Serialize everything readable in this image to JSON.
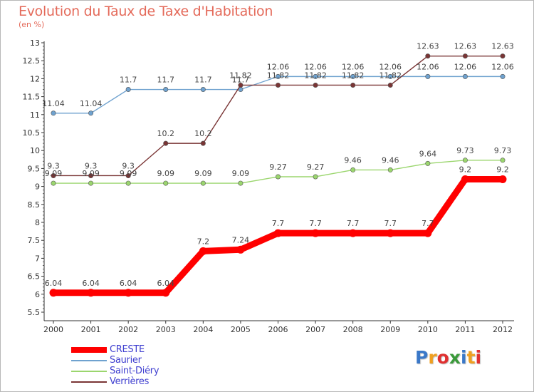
{
  "chart_data": {
    "type": "line",
    "title": "Evolution du Taux de Taxe d'Habitation",
    "subtitle": "(en %)",
    "x": [
      "2000",
      "2001",
      "2002",
      "2003",
      "2004",
      "2005",
      "2006",
      "2007",
      "2008",
      "2009",
      "2010",
      "2011",
      "2012"
    ],
    "ylim": [
      5.5,
      13
    ],
    "yticks": [
      "5.5",
      "6",
      "6.5",
      "7",
      "7.5",
      "8",
      "8.5",
      "9",
      "9.5",
      "10",
      "10.5",
      "11",
      "11.5",
      "12",
      "12.5",
      "13"
    ],
    "grid": false,
    "legend_position": "bottom-left",
    "series": [
      {
        "name": "CRESTE",
        "color": "#ff0000",
        "values": [
          6.04,
          6.04,
          6.04,
          6.04,
          7.2,
          7.24,
          7.7,
          7.7,
          7.7,
          7.7,
          7.7,
          9.2,
          9.2
        ],
        "labels": [
          "6.04",
          "6.04",
          "6.04",
          "6.04",
          "7.2",
          "7.24",
          "7.7",
          "7.7",
          "7.7",
          "7.7",
          "7.7",
          "9.2",
          "9.2"
        ]
      },
      {
        "name": "Saurier",
        "color": "#6fa2cf",
        "values": [
          11.04,
          11.04,
          11.7,
          11.7,
          11.7,
          11.7,
          12.06,
          12.06,
          12.06,
          12.06,
          12.06,
          12.06,
          12.06
        ],
        "labels": [
          "11.04",
          "11.04",
          "11.7",
          "11.7",
          "11.7",
          "11.7",
          "12.06",
          "12.06",
          "12.06",
          "12.06",
          "12.06",
          "12.06",
          "12.06"
        ]
      },
      {
        "name": "Saint-Diéry",
        "color": "#9bd66e",
        "values": [
          9.09,
          9.09,
          9.09,
          9.09,
          9.09,
          9.09,
          9.27,
          9.27,
          9.46,
          9.46,
          9.64,
          9.73,
          9.73
        ],
        "labels": [
          "9.09",
          "9.09",
          "9.09",
          "9.09",
          "9.09",
          "9.09",
          "9.27",
          "9.27",
          "9.46",
          "9.46",
          "9.64",
          "9.73",
          "9.73"
        ]
      },
      {
        "name": "Verrières",
        "color": "#7a3535",
        "values": [
          9.3,
          9.3,
          9.3,
          10.2,
          10.2,
          11.82,
          11.82,
          11.82,
          11.82,
          11.82,
          12.63,
          12.63,
          12.63
        ],
        "labels": [
          "9.3",
          "9.3",
          "9.3",
          "10.2",
          "10.2",
          "11.82",
          "11.82",
          "11.82",
          "11.82",
          "11.82",
          "12.63",
          "12.63",
          "12.63"
        ]
      }
    ]
  },
  "branding": {
    "logo_letters": [
      "P",
      "r",
      "o",
      "x",
      "i",
      "t",
      "i"
    ],
    "logo_colors": [
      "#3a78c8",
      "#f0a020",
      "#e03030",
      "#3a9a3a",
      "#3a78c8",
      "#f0a020",
      "#e03030"
    ]
  }
}
